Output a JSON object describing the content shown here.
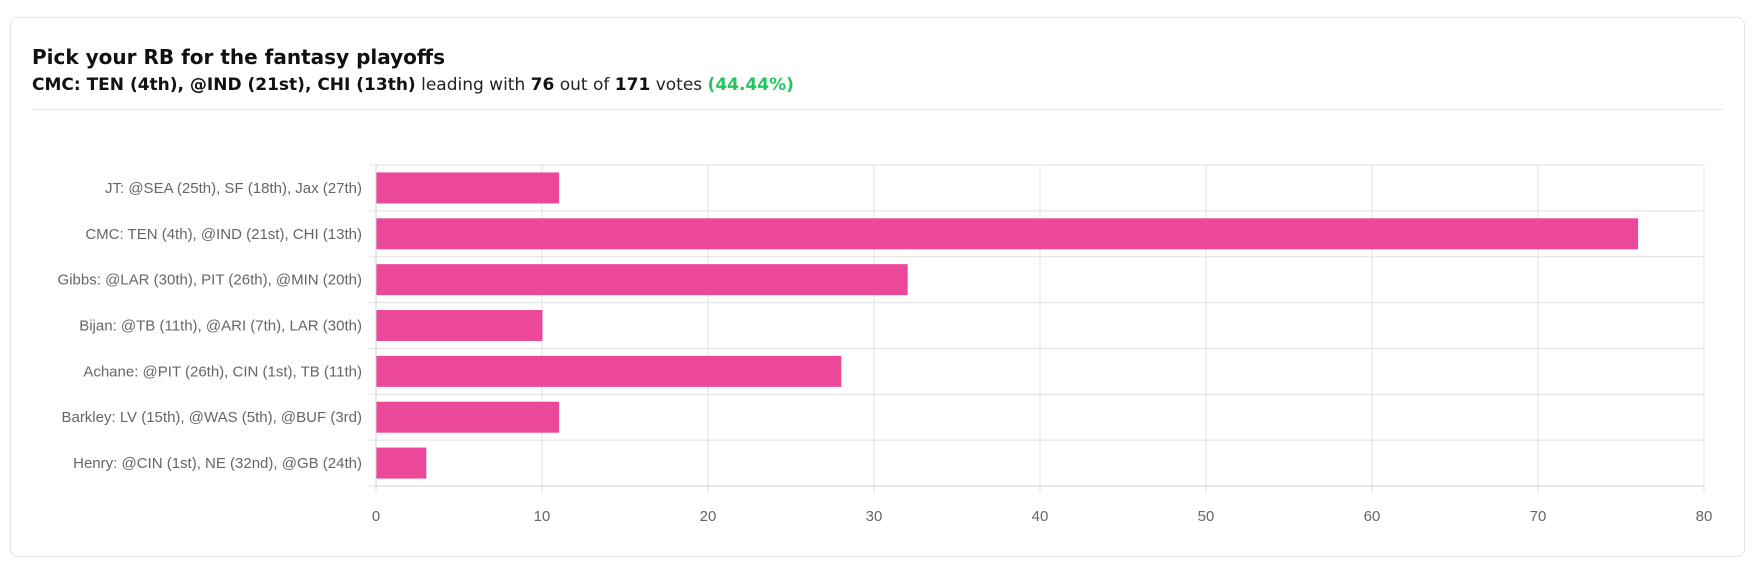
{
  "poll": {
    "title": "Pick your RB for the fantasy playoffs",
    "leader_name": "CMC: TEN (4th), @IND (21st), CHI (13th)",
    "leading_text": "leading with",
    "leader_votes": "76",
    "out_of_text": "out of",
    "total_votes": "171",
    "votes_text": "votes",
    "percent": "(44.44%)"
  },
  "colors": {
    "bar": "#ec4899",
    "percent": "#22c55e",
    "grid": "#e0e0e0",
    "axis_text": "#666666"
  },
  "chart_data": {
    "type": "bar",
    "orientation": "horizontal",
    "categories": [
      "JT: @SEA (25th), SF (18th), Jax (27th)",
      "CMC: TEN (4th), @IND (21st), CHI (13th)",
      "Gibbs: @LAR (30th), PIT (26th), @MIN (20th)",
      "Bijan: @TB (11th), @ARI (7th), LAR (30th)",
      "Achane: @PIT (26th), CIN (1st), TB (11th)",
      "Barkley: LV (15th), @WAS (5th), @BUF (3rd)",
      "Henry: @CIN (1st), NE (32nd), @GB (24th)"
    ],
    "values": [
      11,
      76,
      32,
      10,
      28,
      11,
      3
    ],
    "xlim": [
      0,
      80
    ],
    "xticks": [
      "0",
      "10",
      "20",
      "30",
      "40",
      "50",
      "60",
      "70",
      "80"
    ],
    "grid": true,
    "legend": "none"
  }
}
